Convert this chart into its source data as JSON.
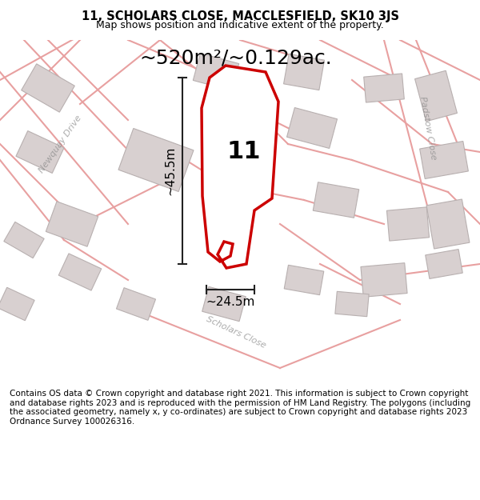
{
  "title_line1": "11, SCHOLARS CLOSE, MACCLESFIELD, SK10 3JS",
  "title_line2": "Map shows position and indicative extent of the property.",
  "footer_text": "Contains OS data © Crown copyright and database right 2021. This information is subject to Crown copyright and database rights 2023 and is reproduced with the permission of HM Land Registry. The polygons (including the associated geometry, namely x, y co-ordinates) are subject to Crown copyright and database rights 2023 Ordnance Survey 100026316.",
  "area_label": "~520m²/~0.129ac.",
  "number_label": "11",
  "dim_height_label": "~45.5m",
  "dim_width_label": "~24.5m",
  "bg_color": "#f5f0f0",
  "map_bg": "#f9f5f5",
  "road_color": "#e8a0a0",
  "building_color": "#d8d0d0",
  "building_edge_color": "#b8b0b0",
  "plot_outline_color": "#cc0000",
  "dim_line_color": "#222222",
  "title_bg": "#ffffff",
  "footer_bg": "#ffffff",
  "street_label_newquay": "Newquay Drive",
  "street_label_padstow": "Padstow Close",
  "street_label_scholars": "Scholars Close"
}
